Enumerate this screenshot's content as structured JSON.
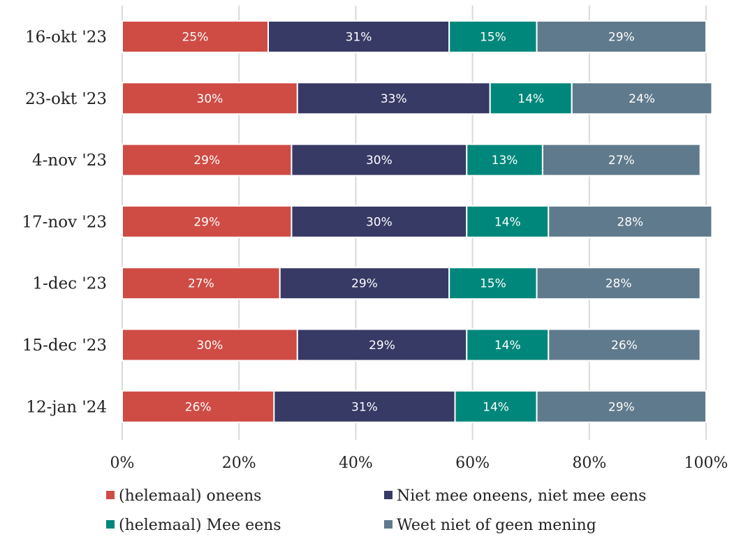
{
  "chart_data": {
    "type": "bar",
    "orientation": "horizontal",
    "stacked": true,
    "categories": [
      "16-okt '23",
      "23-okt '23",
      "4-nov '23",
      "17-nov '23",
      "1-dec '23",
      "15-dec '23",
      "12-jan '24"
    ],
    "series": [
      {
        "name": "(helemaal) oneens",
        "color": "#cf4c45",
        "values": [
          25,
          30,
          29,
          29,
          27,
          30,
          26
        ],
        "labels": [
          "25%",
          "30%",
          "29%",
          "29%",
          "27%",
          "30%",
          "26%"
        ]
      },
      {
        "name": "Niet mee oneens, niet mee eens",
        "color": "#373a65",
        "values": [
          31,
          33,
          30,
          30,
          29,
          29,
          31
        ],
        "labels": [
          "31%",
          "33%",
          "30%",
          "30%",
          "29%",
          "29%",
          "31%"
        ]
      },
      {
        "name": "(helemaal) Mee eens",
        "color": "#00877b",
        "values": [
          15,
          14,
          13,
          14,
          15,
          14,
          14
        ],
        "labels": [
          "15%",
          "14%",
          "13%",
          "14%",
          "15%",
          "14%",
          "14%"
        ]
      },
      {
        "name": "Weet niet of geen mening",
        "color": "#5f7a8c",
        "values": [
          29,
          24,
          27,
          28,
          28,
          26,
          29
        ],
        "labels": [
          "29%",
          "24%",
          "27%",
          "28%",
          "28%",
          "26%",
          "29%"
        ]
      }
    ],
    "xlim": [
      0,
      100
    ],
    "x_ticks": [
      0,
      20,
      40,
      60,
      80,
      100
    ],
    "x_tick_labels": [
      "0%",
      "20%",
      "40%",
      "60%",
      "80%",
      "100%"
    ],
    "grid": true,
    "gridline_color": "#d9d9d9",
    "legend_position": "bottom"
  }
}
